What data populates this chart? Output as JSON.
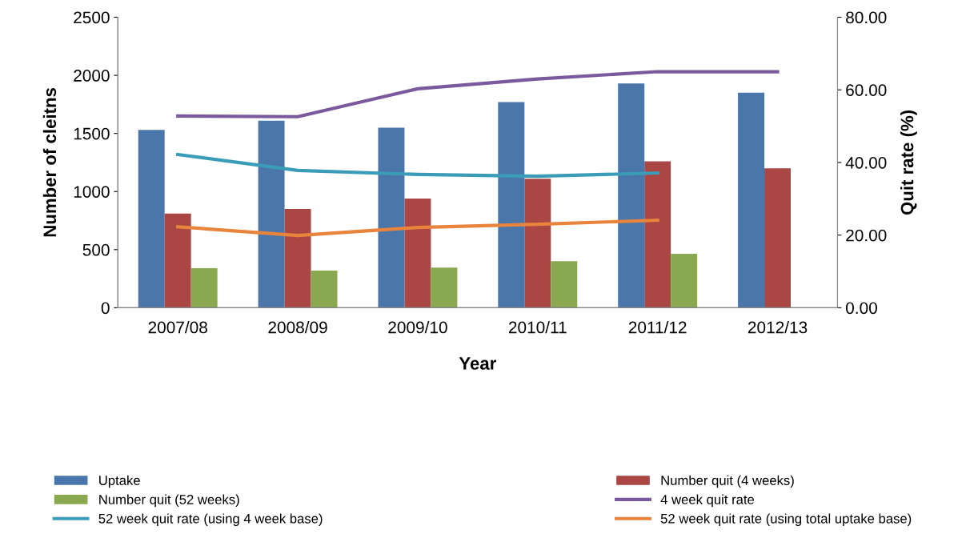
{
  "chart_data": {
    "type": "bar",
    "xlabel": "Year",
    "ylabel": "Number of cleitns",
    "y2label": "Quit rate (%)",
    "categories": [
      "2007/08",
      "2008/09",
      "2009/10",
      "2010/11",
      "2011/12",
      "2012/13"
    ],
    "series": [
      {
        "name": "Uptake",
        "color": "#4a76aa",
        "values": [
          1530,
          1610,
          1550,
          1770,
          1930,
          1850
        ]
      },
      {
        "name": "Number quit (4 weeks)",
        "color": "#aa4744",
        "values": [
          810,
          850,
          940,
          1110,
          1260,
          1200
        ]
      },
      {
        "name": "Number quit (52 weeks)",
        "color": "#8aa84f",
        "values": [
          340,
          320,
          345,
          400,
          465,
          null
        ]
      },
      {
        "name": "4 week quit rate",
        "type": "line",
        "axis": "y2",
        "color": "#7a5a9c",
        "values": [
          52.8,
          52.6,
          60.3,
          63.0,
          65.0,
          65.0
        ]
      },
      {
        "name": "52 week quit rate (using 4 week base)",
        "type": "line",
        "axis": "y2",
        "color": "#3b9cb8",
        "values": [
          42.2,
          37.8,
          36.7,
          36.2,
          37.1,
          null
        ]
      },
      {
        "name": "52 week quit rate (using total uptake base)",
        "type": "line",
        "axis": "y2",
        "color": "#e8843c",
        "values": [
          22.3,
          19.9,
          22.1,
          23.0,
          24.1,
          null
        ]
      }
    ],
    "ylim": [
      0,
      2500
    ],
    "yticks": [
      0,
      500,
      1000,
      1500,
      2000,
      2500
    ],
    "y2lim": [
      0,
      80
    ],
    "y2ticks": [
      {
        "value": 0,
        "label": "0.00"
      },
      {
        "value": 20,
        "label": "20.00"
      },
      {
        "value": 40,
        "label": "40.00"
      },
      {
        "value": 60,
        "label": "60.00"
      },
      {
        "value": 80,
        "label": "80.00"
      }
    ],
    "grid": false,
    "legend": "bottom",
    "marker": "none",
    "line_style": "solid"
  }
}
